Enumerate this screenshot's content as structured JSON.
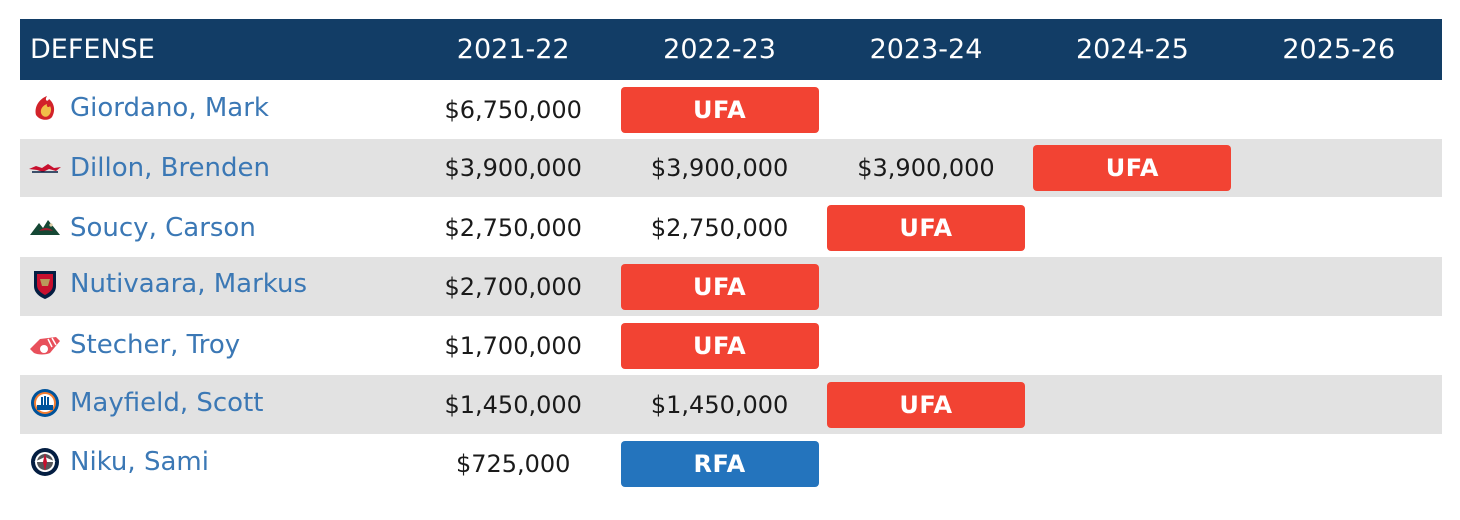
{
  "table": {
    "header": {
      "position_label": "DEFENSE",
      "seasons": [
        "2021-22",
        "2022-23",
        "2023-24",
        "2024-25",
        "2025-26"
      ]
    },
    "colors": {
      "header_bg": "#123d66",
      "ufa": "#f24333",
      "rfa": "#2474bd",
      "link": "#3b78b5"
    },
    "rows": [
      {
        "player": "Giordano, Mark",
        "team_icon": "flames-logo-icon",
        "cells": [
          {
            "text": "$6,750,000"
          },
          {
            "badge": "UFA"
          },
          {
            "text": ""
          },
          {
            "text": ""
          },
          {
            "text": ""
          }
        ]
      },
      {
        "player": "Dillon, Brenden",
        "team_icon": "capitals-logo-icon",
        "cells": [
          {
            "text": "$3,900,000"
          },
          {
            "text": "$3,900,000"
          },
          {
            "text": "$3,900,000"
          },
          {
            "badge": "UFA"
          },
          {
            "text": ""
          }
        ]
      },
      {
        "player": "Soucy, Carson",
        "team_icon": "wild-logo-icon",
        "cells": [
          {
            "text": "$2,750,000"
          },
          {
            "text": "$2,750,000"
          },
          {
            "badge": "UFA"
          },
          {
            "text": ""
          },
          {
            "text": ""
          }
        ]
      },
      {
        "player": "Nutivaara, Markus",
        "team_icon": "panthers-logo-icon",
        "cells": [
          {
            "text": "$2,700,000"
          },
          {
            "badge": "UFA"
          },
          {
            "text": ""
          },
          {
            "text": ""
          },
          {
            "text": ""
          }
        ]
      },
      {
        "player": "Stecher, Troy",
        "team_icon": "red-wings-logo-icon",
        "cells": [
          {
            "text": "$1,700,000"
          },
          {
            "badge": "UFA"
          },
          {
            "text": ""
          },
          {
            "text": ""
          },
          {
            "text": ""
          }
        ]
      },
      {
        "player": "Mayfield, Scott",
        "team_icon": "islanders-logo-icon",
        "cells": [
          {
            "text": "$1,450,000"
          },
          {
            "text": "$1,450,000"
          },
          {
            "badge": "UFA"
          },
          {
            "text": ""
          },
          {
            "text": ""
          }
        ]
      },
      {
        "player": "Niku, Sami",
        "team_icon": "jets-logo-icon",
        "cells": [
          {
            "text": "$725,000"
          },
          {
            "badge": "RFA"
          },
          {
            "text": ""
          },
          {
            "text": ""
          },
          {
            "text": ""
          }
        ]
      }
    ]
  }
}
